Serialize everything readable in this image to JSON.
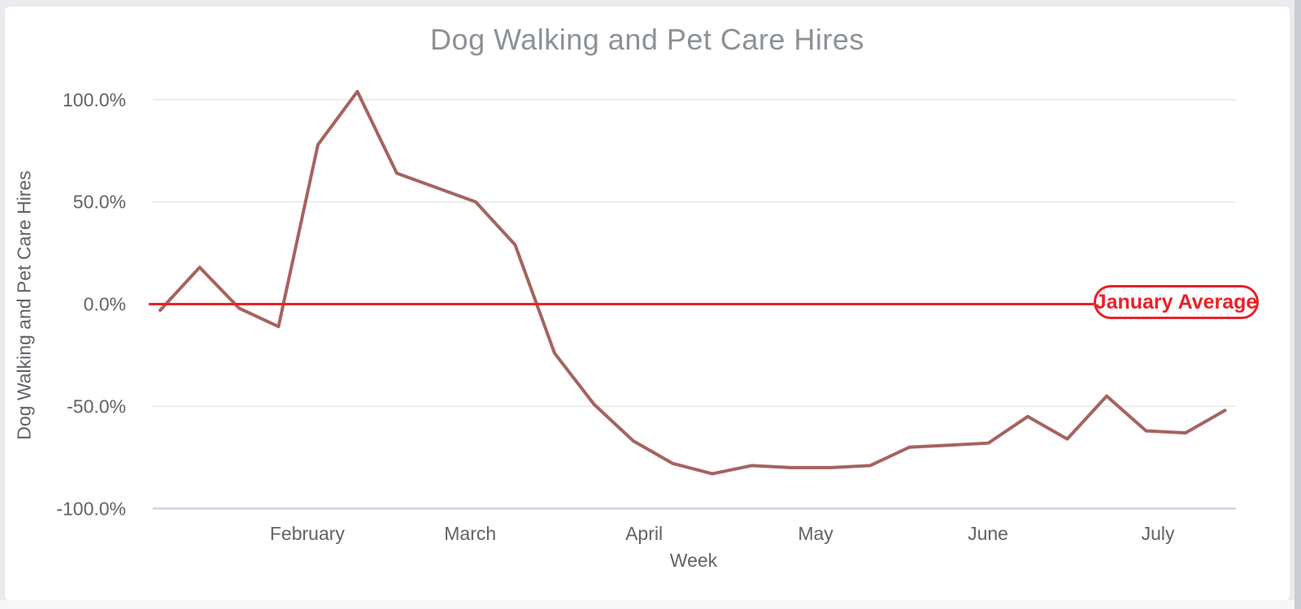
{
  "chart_data": {
    "type": "line",
    "title": "Dog Walking and Pet Care Hires",
    "xlabel": "Week",
    "ylabel": "Dog Walking and Pet Care Hires",
    "ylim": [
      -100,
      110
    ],
    "grid": {
      "on": true,
      "gridline_color": "#e6e6e6",
      "axis_line_color": "#ccd6eb"
    },
    "legend": "none",
    "y_ticks": [
      {
        "label": "100.0%",
        "value": 100
      },
      {
        "label": "50.0%",
        "value": 50
      },
      {
        "label": "0.0%",
        "value": 0
      },
      {
        "label": "-50.0%",
        "value": -50
      },
      {
        "label": "-100.0%",
        "value": -100
      }
    ],
    "x_ticks": [
      {
        "label": "February",
        "week_index": 3.73
      },
      {
        "label": "March",
        "week_index": 7.86
      },
      {
        "label": "April",
        "week_index": 12.27
      },
      {
        "label": "May",
        "week_index": 16.62
      },
      {
        "label": "June",
        "week_index": 20.99
      },
      {
        "label": "July",
        "week_index": 25.3
      }
    ],
    "series": [
      {
        "color": "#a5635f",
        "x_unit": "week_index",
        "values_pct": [
          -3,
          18,
          -2,
          -11,
          78,
          104,
          64,
          57,
          50,
          29,
          -24,
          -49,
          -67,
          -78,
          -83,
          -79,
          -80,
          -80,
          -79,
          -70,
          -69,
          -68,
          -55,
          -66,
          -45,
          -62,
          -63,
          -52
        ]
      }
    ],
    "annotation": {
      "label": "January Average",
      "value_pct": 0,
      "color": "#ea2127"
    }
  }
}
